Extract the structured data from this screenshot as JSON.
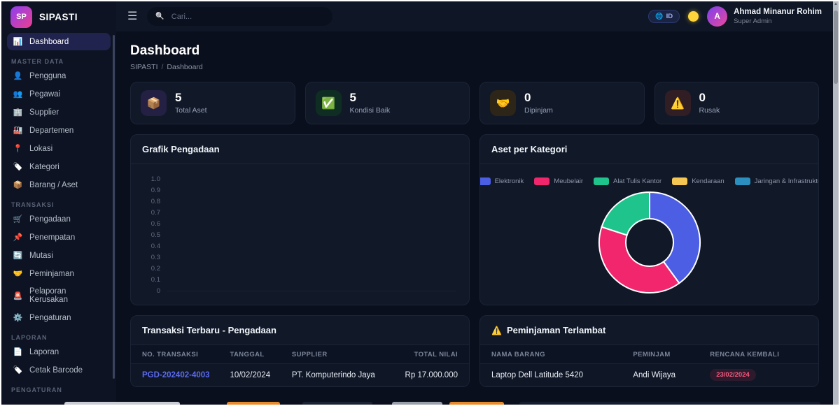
{
  "app": {
    "logo_initials": "SP",
    "brand": "SIPASTI"
  },
  "topbar": {
    "search_placeholder": "Cari...",
    "language_label": "ID",
    "user": {
      "initial": "A",
      "name": "Ahmad Minanur Rohim",
      "role": "Super Admin"
    }
  },
  "sidebar": {
    "sections": [
      {
        "label": "",
        "items": [
          {
            "id": "dashboard",
            "icon": "📊",
            "label": "Dashboard",
            "active": true
          }
        ]
      },
      {
        "label": "MASTER DATA",
        "items": [
          {
            "id": "pengguna",
            "icon": "👤",
            "label": "Pengguna"
          },
          {
            "id": "pegawai",
            "icon": "👥",
            "label": "Pegawai"
          },
          {
            "id": "supplier",
            "icon": "🏢",
            "label": "Supplier"
          },
          {
            "id": "departemen",
            "icon": "🏭",
            "label": "Departemen"
          },
          {
            "id": "lokasi",
            "icon": "📍",
            "label": "Lokasi"
          },
          {
            "id": "kategori",
            "icon": "🏷️",
            "label": "Kategori",
            "gray": true
          },
          {
            "id": "barang-aset",
            "icon": "📦",
            "label": "Barang / Aset"
          }
        ]
      },
      {
        "label": "TRANSAKSI",
        "items": [
          {
            "id": "pengadaan",
            "icon": "🛒",
            "label": "Pengadaan"
          },
          {
            "id": "penempatan",
            "icon": "📌",
            "label": "Penempatan"
          },
          {
            "id": "mutasi",
            "icon": "🔄",
            "label": "Mutasi"
          },
          {
            "id": "peminjaman",
            "icon": "🤝",
            "label": "Peminjaman"
          },
          {
            "id": "pelaporan-kerusakan",
            "icon": "🚨",
            "label": "Pelaporan Kerusakan"
          },
          {
            "id": "pengaturan",
            "icon": "⚙️",
            "label": "Pengaturan"
          }
        ]
      },
      {
        "label": "LAPORAN",
        "items": [
          {
            "id": "laporan",
            "icon": "📄",
            "label": "Laporan"
          },
          {
            "id": "cetak-barcode",
            "icon": "🏷️",
            "label": "Cetak Barcode",
            "gray": true
          }
        ]
      },
      {
        "label": "PENGATURAN",
        "items": []
      }
    ]
  },
  "page": {
    "title": "Dashboard",
    "breadcrumb_root": "SIPASTI",
    "breadcrumb_current": "Dashboard"
  },
  "stats": [
    {
      "icon": "📦",
      "value": "5",
      "label": "Total Aset",
      "tint": "#232044"
    },
    {
      "icon": "✅",
      "value": "5",
      "label": "Kondisi Baik",
      "tint": "#0f2d22"
    },
    {
      "icon": "🤝",
      "value": "0",
      "label": "Dipinjam",
      "tint": "#2d2517"
    },
    {
      "icon": "⚠️",
      "value": "0",
      "label": "Rusak",
      "tint": "#311d24"
    }
  ],
  "chart_data": [
    {
      "type": "line",
      "title": "Grafik Pengadaan",
      "series": [],
      "x": [],
      "y_ticks": [
        "1.0",
        "0.9",
        "0.8",
        "0.7",
        "0.6",
        "0.5",
        "0.4",
        "0.3",
        "0.2",
        "0.1",
        "0"
      ],
      "ylim": [
        0,
        1
      ],
      "grid": false,
      "note": "chart rendered empty - no data series plotted"
    },
    {
      "type": "pie",
      "donut": true,
      "title": "Aset per Kategori",
      "categories": [
        "Elektronik",
        "Meubelair",
        "Alat Tulis Kantor",
        "Kendaraan",
        "Jaringan & Infrastruktur"
      ],
      "values": [
        2,
        2,
        1,
        0,
        0
      ],
      "colors": [
        "#4c5fe4",
        "#f1266d",
        "#1fc48d",
        "#f6c653",
        "#2b90bf"
      ],
      "legend_position": "top"
    }
  ],
  "tables": [
    {
      "title": "Transaksi Terbaru - Pengadaan",
      "title_icon": "",
      "columns": [
        {
          "label": "NO. TRANSAKSI",
          "align": "left",
          "cell": "link"
        },
        {
          "label": "TANGGAL",
          "align": "left",
          "cell": "text"
        },
        {
          "label": "SUPPLIER",
          "align": "left",
          "cell": "text"
        },
        {
          "label": "TOTAL NILAI",
          "align": "right",
          "cell": "text"
        }
      ],
      "rows": [
        [
          "PGD-202402-4003",
          "10/02/2024",
          "PT. Komputerindo Jaya",
          "Rp 17.000.000"
        ]
      ]
    },
    {
      "title": "Peminjaman Terlambat",
      "title_icon": "⚠️",
      "columns": [
        {
          "label": "NAMA BARANG",
          "align": "left",
          "cell": "text"
        },
        {
          "label": "PEMINJAM",
          "align": "left",
          "cell": "text"
        },
        {
          "label": "RENCANA KEMBALI",
          "align": "left",
          "cell": "badge"
        }
      ],
      "rows": [
        [
          "Laptop Dell Latitude 5420",
          "Andi Wijaya",
          "23/02/2024"
        ]
      ]
    }
  ]
}
